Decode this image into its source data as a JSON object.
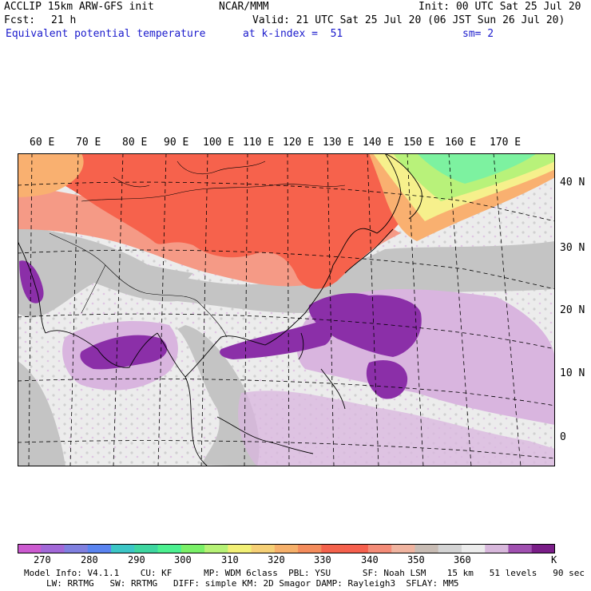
{
  "header": {
    "model_line": "ACCLIP 15km ARW-GFS init",
    "org": "NCAR/MMM",
    "init": "Init: 00 UTC Sat 25 Jul 20",
    "fcst_label": "Fcst:",
    "fcst_value": "21 h",
    "valid": "Valid: 21 UTC Sat 25 Jul 20 (06 JST Sun 26 Jul 20)",
    "field": "Equivalent potential temperature",
    "level": "at k-index =  51",
    "smooth": "sm= 2"
  },
  "map": {
    "lon_labels": [
      "60 E",
      "70 E",
      "80 E",
      "90 E",
      "100 E",
      "110 E",
      "120 E",
      "130 E",
      "140 E",
      "150 E",
      "160 E",
      "170 E"
    ],
    "lat_labels": [
      "40 N",
      "30 N",
      "20 N",
      "10 N",
      "0"
    ],
    "palette": {
      "purple_dark": "#8b2fa8",
      "lavender": "#d9b5df",
      "light_grey": "#ececec",
      "grey": "#c4c4c4",
      "salmon": "#f59a86",
      "red_orange": "#f6624c",
      "orange": "#f9b070",
      "yellow": "#f6f08c",
      "light_green": "#b8f27a",
      "green": "#7df2a0"
    }
  },
  "colorbar": {
    "colors": [
      "#cc5ad0",
      "#a268d8",
      "#8080e0",
      "#5a84f0",
      "#3cc6c6",
      "#3ed6a0",
      "#4cf090",
      "#7af068",
      "#b6f276",
      "#f2f076",
      "#f6d076",
      "#f6b06a",
      "#f48c5c",
      "#f4624c",
      "#f6604e",
      "#f48c78",
      "#f0b4a0",
      "#c8bcb4",
      "#d4d4d4",
      "#ececec",
      "#d8b8dc",
      "#a050b0",
      "#7a1e88"
    ],
    "tick_labels": [
      "270",
      "280",
      "290",
      "300",
      "310",
      "320",
      "330",
      "340",
      "350",
      "360",
      "K"
    ]
  },
  "footer": {
    "line1": "Model Info: V4.1.1    CU: KF      MP: WDM 6class  PBL: YSU      SF: Noah LSM    15 km   51 levels   90 sec",
    "line2": "LW: RRTMG   SW: RRTMG   DIFF: simple KM: 2D Smagor DAMP: Rayleigh3  SFLAY: MM5"
  }
}
